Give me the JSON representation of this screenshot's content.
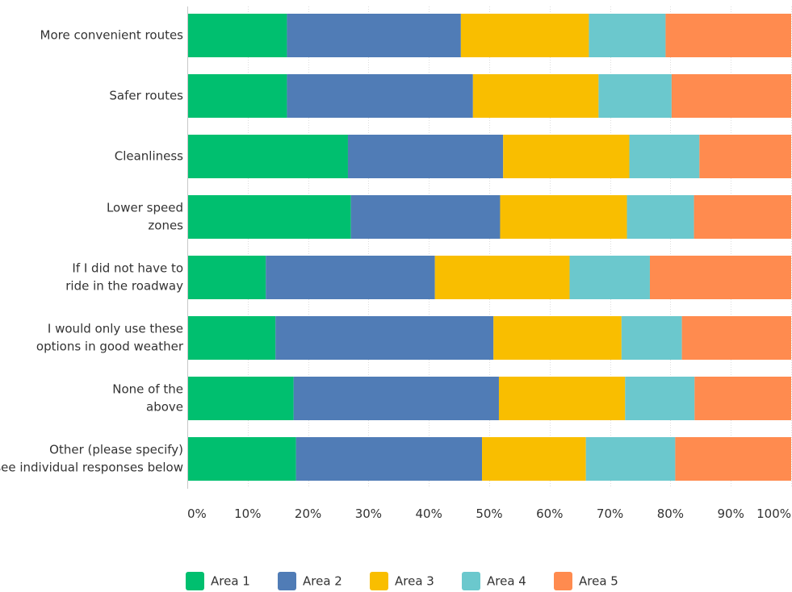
{
  "chart_data": {
    "type": "bar",
    "orientation": "horizontal",
    "stacked": true,
    "normalized": true,
    "categories": [
      [
        "More convenient routes"
      ],
      [
        "Safer routes"
      ],
      [
        "Cleanliness"
      ],
      [
        "Lower speed",
        "zones"
      ],
      [
        "If I did not have to",
        "ride in the roadway"
      ],
      [
        "I would only use these",
        "options in good weather"
      ],
      [
        "None of the",
        "above"
      ],
      [
        "Other (please specify)",
        "see individual responses below"
      ]
    ],
    "series": [
      {
        "name": "Area 1",
        "color": "#00bf6f",
        "values": [
          16.5,
          16.5,
          26.6,
          27.1,
          13.0,
          14.6,
          17.6,
          18.0
        ]
      },
      {
        "name": "Area 2",
        "color": "#507cb6",
        "values": [
          28.8,
          30.8,
          25.7,
          24.7,
          28.0,
          36.1,
          34.0,
          30.8
        ]
      },
      {
        "name": "Area 3",
        "color": "#f9be00",
        "values": [
          21.2,
          20.8,
          20.9,
          21.0,
          22.3,
          21.2,
          20.9,
          17.2
        ]
      },
      {
        "name": "Area 4",
        "color": "#6bc8cd",
        "values": [
          12.7,
          12.1,
          11.6,
          11.1,
          13.3,
          10.0,
          11.5,
          14.8
        ]
      },
      {
        "name": "Area 5",
        "color": "#ff8b4f",
        "values": [
          20.8,
          19.8,
          15.2,
          16.1,
          23.4,
          18.1,
          16.0,
          19.2
        ]
      }
    ],
    "xlim": [
      0,
      100
    ],
    "ticks": [
      "0%",
      "10%",
      "20%",
      "30%",
      "40%",
      "50%",
      "60%",
      "70%",
      "80%",
      "90%",
      "100%"
    ],
    "grid": true,
    "legend_position": "bottom-center"
  }
}
